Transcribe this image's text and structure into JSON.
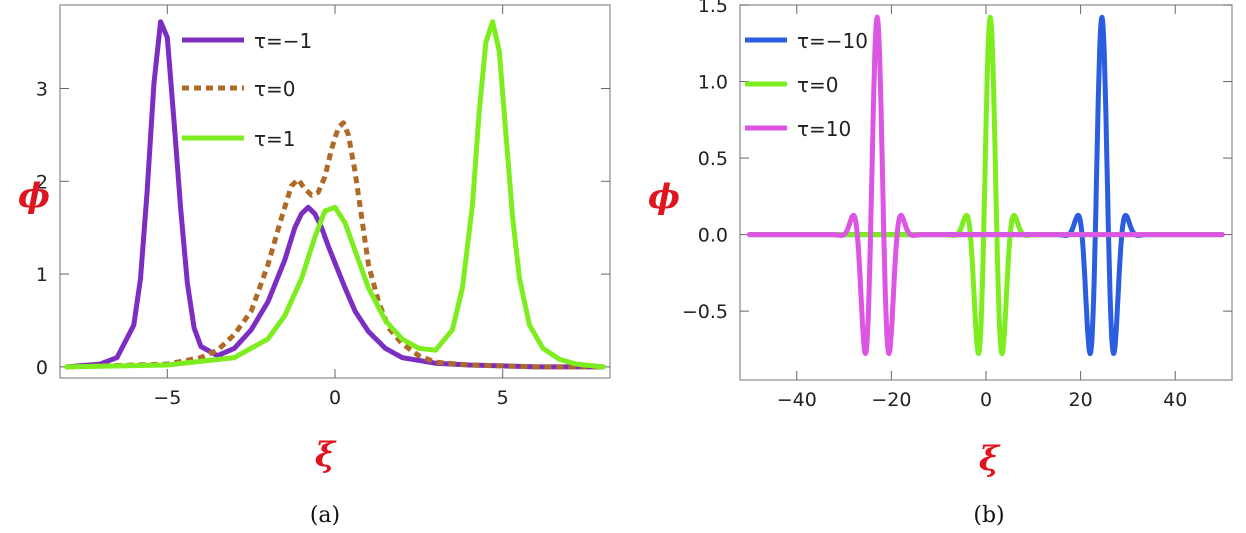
{
  "chart_data": [
    {
      "type": "line",
      "panel_label": "(a)",
      "xlabel": "ξ",
      "ylabel": "ϕ",
      "xlim": [
        -8.2,
        8.2
      ],
      "ylim": [
        -0.12,
        3.9
      ],
      "xticks": [
        -5,
        0,
        5
      ],
      "yticks": [
        0,
        1,
        2,
        3
      ],
      "legend_position": "top-center",
      "series": [
        {
          "name": "τ=-1",
          "color": "#7c2ec2",
          "dash": "solid",
          "x": [
            -8.0,
            -7.0,
            -6.5,
            -6.0,
            -5.8,
            -5.6,
            -5.4,
            -5.2,
            -5.0,
            -4.8,
            -4.6,
            -4.4,
            -4.2,
            -4.0,
            -3.5,
            -3.0,
            -2.5,
            -2.0,
            -1.5,
            -1.2,
            -1.0,
            -0.8,
            -0.6,
            -0.4,
            -0.2,
            0.0,
            0.3,
            0.6,
            1.0,
            1.5,
            2.0,
            3.0,
            4.0,
            5.0,
            6.0,
            8.0
          ],
          "y": [
            0.0,
            0.03,
            0.1,
            0.45,
            0.95,
            1.9,
            3.05,
            3.72,
            3.55,
            2.65,
            1.7,
            0.9,
            0.42,
            0.22,
            0.12,
            0.2,
            0.4,
            0.7,
            1.15,
            1.5,
            1.65,
            1.72,
            1.65,
            1.5,
            1.3,
            1.12,
            0.85,
            0.6,
            0.38,
            0.2,
            0.1,
            0.04,
            0.02,
            0.01,
            0.0,
            0.0
          ]
        },
        {
          "name": "τ=0",
          "color": "#b06a28",
          "dash": "dotted",
          "x": [
            -8.0,
            -5.0,
            -4.0,
            -3.5,
            -3.0,
            -2.5,
            -2.0,
            -1.6,
            -1.3,
            -1.1,
            -0.9,
            -0.7,
            -0.5,
            -0.3,
            -0.1,
            0.1,
            0.25,
            0.4,
            0.6,
            0.8,
            1.0,
            1.3,
            1.6,
            2.0,
            2.5,
            3.0,
            4.0,
            5.0,
            6.0,
            7.0,
            8.0
          ],
          "y": [
            0.0,
            0.03,
            0.1,
            0.18,
            0.35,
            0.6,
            1.1,
            1.6,
            1.95,
            2.02,
            1.92,
            1.85,
            1.88,
            2.05,
            2.35,
            2.58,
            2.63,
            2.5,
            2.1,
            1.6,
            1.1,
            0.7,
            0.42,
            0.25,
            0.12,
            0.05,
            0.02,
            0.01,
            0.0,
            0.0,
            0.0
          ]
        },
        {
          "name": "τ=1",
          "color": "#7ded20",
          "dash": "solid",
          "x": [
            -8.0,
            -5.0,
            -3.0,
            -2.0,
            -1.5,
            -1.0,
            -0.6,
            -0.3,
            0.0,
            0.3,
            0.6,
            1.0,
            1.5,
            2.0,
            2.5,
            3.0,
            3.5,
            3.8,
            4.1,
            4.3,
            4.5,
            4.7,
            4.9,
            5.1,
            5.3,
            5.5,
            5.8,
            6.2,
            6.7,
            7.2,
            8.0
          ],
          "y": [
            0.0,
            0.02,
            0.1,
            0.3,
            0.55,
            0.95,
            1.4,
            1.68,
            1.72,
            1.55,
            1.25,
            0.85,
            0.5,
            0.3,
            0.2,
            0.18,
            0.4,
            0.85,
            1.75,
            2.75,
            3.5,
            3.72,
            3.4,
            2.5,
            1.6,
            0.95,
            0.45,
            0.2,
            0.08,
            0.03,
            0.0
          ]
        }
      ]
    },
    {
      "type": "line",
      "panel_label": "(b)",
      "xlabel": "ξ",
      "ylabel": "ϕ",
      "xlim": [
        -52,
        52
      ],
      "ylim": [
        -0.95,
        1.5
      ],
      "xticks": [
        -40,
        -20,
        0,
        20,
        40
      ],
      "yticks": [
        -0.5,
        0.0,
        0.5,
        1.0,
        1.5
      ],
      "ytick_labels": [
        "-0.5",
        "0.0",
        "0.5",
        "1.0",
        "1.5"
      ],
      "legend_position": "top-left",
      "packet": {
        "amplitude": 1.42,
        "omega": 1.12,
        "sigma": 2.4
      },
      "series": [
        {
          "name": "τ=-10",
          "color": "#2a5de0",
          "center": 24.5
        },
        {
          "name": "τ=0",
          "color": "#7ded20",
          "center": 0.9
        },
        {
          "name": "τ=10",
          "color": "#dc55e3",
          "center": -23.0
        }
      ]
    }
  ],
  "captions": [
    "(a)",
    "(b)"
  ],
  "colors": {
    "axis_label": "#e0141e",
    "frame": "#8a8a8a"
  }
}
